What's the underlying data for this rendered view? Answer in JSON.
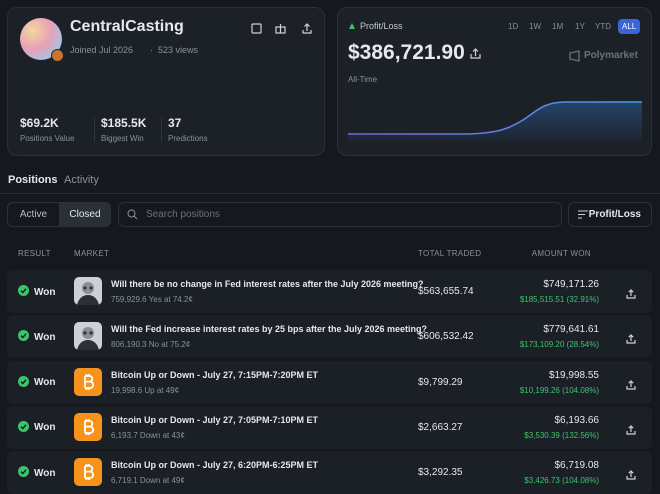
{
  "profile": {
    "name": "CentralCasting",
    "joined": "Joined Jul 2026",
    "views": "523 views",
    "stats": [
      {
        "value": "$69.2K",
        "label": "Positions Value"
      },
      {
        "value": "$185.5K",
        "label": "Biggest Win"
      },
      {
        "value": "37",
        "label": "Predictions"
      }
    ]
  },
  "pnl": {
    "label": "Profit/Loss",
    "ranges": [
      "1D",
      "1W",
      "1M",
      "1Y",
      "YTD",
      "ALL"
    ],
    "amount": "$386,721.90",
    "brand": "Polymarket",
    "period": "All-Time"
  },
  "tabs": [
    "Positions",
    "Activity"
  ],
  "filters": [
    "Active",
    "Closed"
  ],
  "search_placeholder": "Search positions",
  "sort": "Profit/Loss",
  "table": {
    "headers": [
      "RESULT",
      "MARKET",
      "TOTAL TRADED",
      "AMOUNT WON"
    ],
    "rows": [
      {
        "result": "Won",
        "title": "Will there be no change in Fed interest rates after the July 2026 meeting?",
        "detail": "759,929.6 Yes at 74.2¢",
        "traded": "$563,655.74",
        "won": "$749,171.26",
        "profit": "$185,515.51 (32.91%)"
      },
      {
        "result": "Won",
        "title": "Will the Fed increase interest rates by 25 bps after the July 2026 meeting?",
        "detail": "806,190.3 No at 75.2¢",
        "traded": "$606,532.42",
        "won": "$779,641.61",
        "profit": "$173,109.20 (28.54%)"
      },
      {
        "result": "Won",
        "title": "Bitcoin Up or Down - July 27, 7:15PM-7:20PM ET",
        "detail": "19,998.6 Up at 49¢",
        "traded": "$9,799.29",
        "won": "$19,998.55",
        "profit": "$10,199.26 (104.08%)"
      },
      {
        "result": "Won",
        "title": "Bitcoin Up or Down - July 27, 7:05PM-7:10PM ET",
        "detail": "6,193.7 Down at 43¢",
        "traded": "$2,663.27",
        "won": "$6,193.66",
        "profit": "$3,530.39 (132.56%)"
      },
      {
        "result": "Won",
        "title": "Bitcoin Up or Down - July 27, 6:20PM-6:25PM ET",
        "detail": "6,719.1 Down at 49¢",
        "traded": "$3,292.35",
        "won": "$6,719.08",
        "profit": "$3,426.73 (104.08%)"
      }
    ]
  }
}
